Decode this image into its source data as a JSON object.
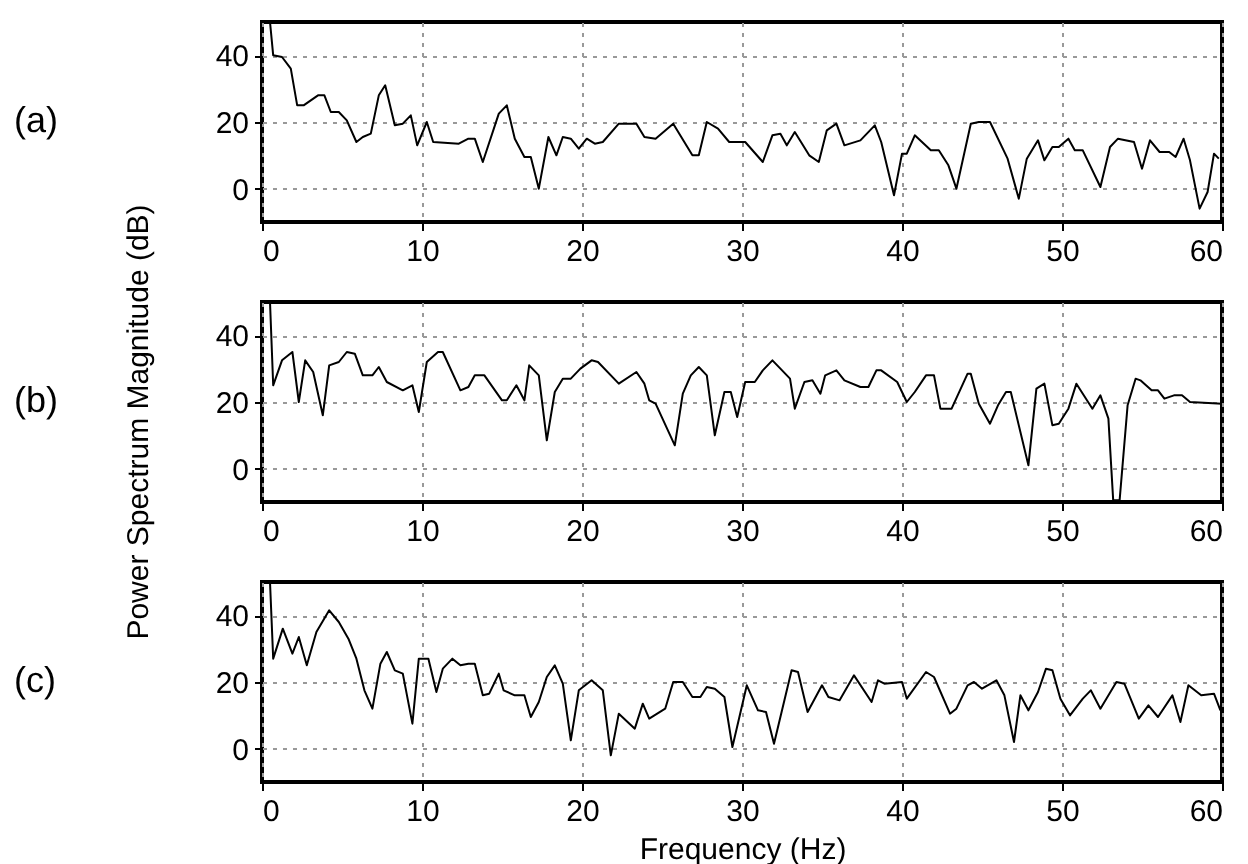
{
  "chart_data": [
    {
      "type": "line",
      "annotations": [
        "(a)"
      ],
      "xlim": [
        0,
        60
      ],
      "xticks": [
        0,
        10,
        20,
        30,
        40,
        50,
        60
      ],
      "ylim": [
        -10,
        50
      ],
      "yticks": [
        0,
        20,
        40
      ],
      "grid": true,
      "color": "#000000",
      "x": [
        0.5,
        0.7,
        1.25,
        1.8,
        2.2,
        2.6,
        3.5,
        3.9,
        4.3,
        4.8,
        5.3,
        5.9,
        6.3,
        6.8,
        7.3,
        7.7,
        8.3,
        8.8,
        9.3,
        9.7,
        10.3,
        10.7,
        12.3,
        12.9,
        13.3,
        13.8,
        14.8,
        15.3,
        15.8,
        16.4,
        16.8,
        17.3,
        17.9,
        18.4,
        18.8,
        19.3,
        19.8,
        20.3,
        20.8,
        21.3,
        22.3,
        23.4,
        23.9,
        24.6,
        25.7,
        26.9,
        27.3,
        27.8,
        28.5,
        29.2,
        29.7,
        30.2,
        31.3,
        31.9,
        32.4,
        32.8,
        33.3,
        34.2,
        34.8,
        35.3,
        35.9,
        36.4,
        37.4,
        38.3,
        38.7,
        39.5,
        40,
        40.3,
        40.8,
        41.8,
        42.3,
        42.9,
        43.4,
        44.3,
        44.8,
        45.5,
        46.6,
        47.3,
        47.8,
        48.5,
        48.9,
        49.4,
        49.8,
        50.4,
        50.8,
        51.3,
        52.4,
        53,
        53.5,
        54.5,
        55,
        55.5,
        56.1,
        56.7,
        57.1,
        57.6,
        58,
        58.6,
        59.1,
        59.5,
        59.8
      ],
      "values": [
        50,
        40,
        39.5,
        36,
        25,
        25,
        28,
        28,
        23,
        23,
        20.5,
        14,
        15.5,
        16.5,
        28,
        31,
        19,
        19.5,
        22,
        13,
        20,
        14,
        13.5,
        15,
        15,
        8,
        22.5,
        25,
        15,
        9.5,
        9.5,
        0,
        15.5,
        10,
        15.5,
        15,
        12,
        15,
        13.5,
        14,
        19.5,
        19.5,
        15.5,
        15,
        19.5,
        10,
        10,
        20,
        18,
        14,
        14,
        14,
        8,
        16,
        16.5,
        13,
        17,
        10,
        8,
        17.5,
        19.5,
        13,
        14.5,
        19,
        14,
        -2,
        10.5,
        10.5,
        16,
        11.5,
        11.5,
        7,
        0,
        19.5,
        20,
        20,
        9,
        -3,
        9,
        14.5,
        8.5,
        12.5,
        12.5,
        15,
        11.5,
        11.5,
        0.5,
        12.5,
        15,
        14,
        6,
        14.5,
        11,
        11,
        9.5,
        15,
        8.5,
        -6,
        -1,
        10.5,
        9
      ]
    },
    {
      "type": "line",
      "annotations": [
        "(b)"
      ],
      "ylabel": "Power Spectrum Magnitude (dB)",
      "xlim": [
        0,
        60
      ],
      "xticks": [
        0,
        10,
        20,
        30,
        40,
        50,
        60
      ],
      "ylim": [
        -10,
        50
      ],
      "yticks": [
        0,
        20,
        40
      ],
      "grid": true,
      "color": "#000000",
      "x": [
        0.5,
        0.7,
        1.25,
        1.9,
        2.3,
        2.7,
        3.2,
        3.8,
        4.2,
        4.8,
        5.3,
        5.8,
        6.3,
        6.9,
        7.3,
        7.8,
        8.8,
        9.4,
        9.8,
        10.3,
        11,
        11.3,
        12.4,
        12.9,
        13.3,
        13.9,
        15,
        15.3,
        15.9,
        16.4,
        16.7,
        17.3,
        17.8,
        18.3,
        18.8,
        19.3,
        19.9,
        20.6,
        21,
        22.3,
        23.4,
        23.9,
        24.2,
        24.6,
        25.8,
        26.3,
        26.8,
        27.3,
        27.8,
        28.3,
        28.9,
        29.3,
        29.7,
        30.2,
        30.8,
        31.3,
        31.9,
        32.4,
        33,
        33.3,
        33.9,
        34.4,
        34.9,
        35.2,
        35.9,
        36.4,
        37.4,
        37.9,
        38.4,
        38.7,
        39.7,
        40.3,
        40.8,
        41.5,
        42,
        42.4,
        43.1,
        44.1,
        44.3,
        44.8,
        45.5,
        46,
        46.5,
        46.8,
        47.9,
        48.4,
        48.9,
        49.4,
        49.8,
        50.4,
        50.9,
        51.9,
        52.4,
        52.9,
        53.2,
        53.6,
        54.1,
        54.6,
        54.9,
        55.6,
        56,
        56.4,
        57,
        57.5,
        58,
        60
      ],
      "values": [
        50,
        25,
        32.5,
        35,
        20,
        32.5,
        29,
        16,
        31,
        32,
        35,
        34.5,
        28,
        28,
        30.5,
        26,
        23.5,
        25,
        17,
        32,
        35,
        35,
        23.5,
        24.5,
        28,
        28,
        20.5,
        20.5,
        25,
        20.5,
        31,
        28,
        8.5,
        23,
        27,
        27,
        30,
        32.5,
        32,
        25.5,
        29,
        25.5,
        20.5,
        19.5,
        7,
        22.5,
        28,
        30.5,
        28,
        10,
        23,
        23,
        15.5,
        26,
        26,
        29.5,
        32.5,
        30,
        27,
        18,
        26,
        26.5,
        22.5,
        28,
        29.5,
        26.5,
        24.5,
        24.5,
        29.5,
        29.5,
        26,
        20,
        23,
        28,
        28,
        18,
        18,
        28.5,
        28.5,
        19.5,
        13.5,
        19,
        23,
        23,
        1,
        24,
        25.5,
        13,
        13.5,
        18,
        25.5,
        18,
        22,
        15,
        -9.5,
        -9.5,
        19,
        27,
        26.5,
        23.5,
        23.5,
        21,
        22,
        22,
        20,
        19.5
      ]
    },
    {
      "type": "line",
      "annotations": [
        "(c)"
      ],
      "xlabel": "Frequency (Hz)",
      "xlim": [
        0,
        60
      ],
      "xticks": [
        0,
        10,
        20,
        30,
        40,
        50,
        60
      ],
      "ylim": [
        -10,
        50
      ],
      "yticks": [
        0,
        20,
        40
      ],
      "grid": true,
      "color": "#000000",
      "x": [
        0.5,
        0.7,
        1.3,
        1.9,
        2.3,
        2.8,
        3.4,
        4.2,
        4.8,
        5.4,
        5.9,
        6.4,
        6.9,
        7.4,
        7.8,
        8.3,
        8.8,
        9.4,
        9.8,
        10.4,
        10.9,
        11.3,
        11.9,
        12.4,
        12.9,
        13.3,
        13.8,
        14.2,
        14.8,
        15.1,
        15.8,
        16.4,
        16.8,
        17.3,
        17.8,
        18.3,
        18.8,
        19.3,
        19.8,
        20.6,
        21.3,
        21.8,
        22.3,
        23.3,
        23.8,
        24.2,
        25.2,
        25.7,
        26.3,
        26.9,
        27.4,
        27.8,
        28.3,
        28.9,
        29.4,
        30.3,
        31,
        31.5,
        32,
        33.1,
        33.5,
        34.1,
        35,
        35.4,
        36.1,
        37,
        38.1,
        38.5,
        38.9,
        40,
        40.3,
        41.5,
        42,
        43,
        43.4,
        44.1,
        44.5,
        45,
        45.9,
        46.4,
        47,
        47.4,
        47.9,
        48.5,
        49,
        49.4,
        49.9,
        50.5,
        51.3,
        51.8,
        52.4,
        53.4,
        53.9,
        54.8,
        55.4,
        56,
        56.9,
        57.4,
        57.9,
        58.7,
        59.5,
        59.9
      ],
      "values": [
        50,
        27,
        36,
        28.5,
        33.5,
        25,
        35,
        41.5,
        38,
        33,
        27,
        17.5,
        12,
        25.5,
        29,
        23.5,
        22.5,
        7.5,
        27,
        27,
        17,
        24,
        27,
        25,
        25.5,
        25.5,
        16,
        16.5,
        22.5,
        17.5,
        16,
        16,
        9.5,
        14,
        21.5,
        25,
        19.5,
        2.5,
        17.5,
        20.5,
        17.5,
        -2,
        10.5,
        6,
        13.5,
        9,
        12,
        20,
        20,
        15.5,
        15.5,
        18.5,
        18,
        15.5,
        0.5,
        19,
        11.5,
        11,
        1.5,
        23.5,
        23,
        11,
        19,
        15.5,
        14.5,
        22,
        14,
        20.5,
        19.5,
        20,
        15,
        23,
        21.5,
        10.5,
        12,
        19,
        20,
        18,
        20.5,
        16,
        2,
        16,
        11.5,
        17,
        24,
        23.5,
        15,
        10,
        15,
        17.5,
        12,
        20,
        19.5,
        9,
        13,
        9.5,
        16,
        8,
        19,
        16,
        16.5,
        11.5
      ]
    }
  ]
}
